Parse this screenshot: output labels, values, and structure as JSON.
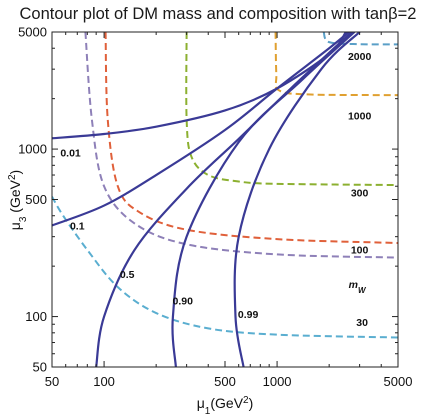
{
  "chart_data": {
    "type": "line",
    "title": "Contour plot of DM mass and composition with tanβ=2",
    "xlabel": {
      "base": "μ",
      "sub": "1",
      "paren": "(GeV",
      "sup": "2",
      "close": ")"
    },
    "ylabel": {
      "base": "μ",
      "sub": "3",
      "paren": " (GeV",
      "sup": "2",
      "close": ")"
    },
    "x_scale": "log",
    "y_scale": "log",
    "xlim": [
      50,
      5000
    ],
    "ylim": [
      50,
      5000
    ],
    "x_ticks": [
      {
        "value": 50,
        "label": "50"
      },
      {
        "value": 100,
        "label": "100"
      },
      {
        "value": 500,
        "label": "500"
      },
      {
        "value": 1000,
        "label": "1000"
      },
      {
        "value": 5000,
        "label": "5000"
      }
    ],
    "y_ticks": [
      {
        "value": 50,
        "label": "50"
      },
      {
        "value": 100,
        "label": "100"
      },
      {
        "value": 500,
        "label": "500"
      },
      {
        "value": 1000,
        "label": "1000"
      },
      {
        "value": 5000,
        "label": "5000"
      }
    ],
    "minor_ticks": [
      60,
      70,
      80,
      90,
      200,
      300,
      400,
      600,
      700,
      800,
      900,
      2000,
      3000,
      4000
    ],
    "grid": false,
    "mass_contours": [
      {
        "label": "2000",
        "color": "#5a9fc7",
        "points": [
          [
            1860,
            5000
          ],
          [
            2000,
            4350
          ],
          [
            3000,
            4230
          ],
          [
            5000,
            4220
          ]
        ],
        "label_at": [
          3000,
          3400
        ]
      },
      {
        "label": "1000",
        "color": "#e0a030",
        "points": [
          [
            980,
            5000
          ],
          [
            990,
            2800
          ],
          [
            1020,
            2250
          ],
          [
            1500,
            2120
          ],
          [
            5000,
            2100
          ]
        ],
        "label_at": [
          3000,
          1500
        ]
      },
      {
        "label": "300",
        "color": "#8cb030",
        "points": [
          [
            300,
            5000
          ],
          [
            300,
            1500
          ],
          [
            320,
            900
          ],
          [
            400,
            700
          ],
          [
            600,
            640
          ],
          [
            1000,
            620
          ],
          [
            5000,
            610
          ]
        ],
        "label_at": [
          3000,
          520
        ]
      },
      {
        "label": "100",
        "color": "#e0603a",
        "points": [
          [
            102,
            5000
          ],
          [
            105,
            1500
          ],
          [
            120,
            600
          ],
          [
            160,
            420
          ],
          [
            300,
            330
          ],
          [
            1000,
            290
          ],
          [
            5000,
            275
          ]
        ],
        "label_at": [
          3000,
          238
        ]
      },
      {
        "label": "mW",
        "label_base": "m",
        "label_sub": "W",
        "color": "#8e80b8",
        "points": [
          [
            78,
            5000
          ],
          [
            85,
            1500
          ],
          [
            100,
            600
          ],
          [
            150,
            360
          ],
          [
            300,
            270
          ],
          [
            1000,
            235
          ],
          [
            5000,
            225
          ]
        ],
        "label_at": [
          2900,
          148
        ]
      },
      {
        "label": "30",
        "color": "#5aaed0",
        "points": [
          [
            50,
            520
          ],
          [
            58,
            400
          ],
          [
            80,
            250
          ],
          [
            120,
            150
          ],
          [
            200,
            105
          ],
          [
            400,
            85
          ],
          [
            1000,
            78
          ],
          [
            5000,
            75
          ]
        ],
        "label_at": [
          3100,
          88
        ]
      }
    ],
    "composition_contours": [
      {
        "label": "0.01",
        "color": "#3a3a96",
        "points": [
          [
            50,
            1160
          ],
          [
            100,
            1230
          ],
          [
            200,
            1360
          ],
          [
            500,
            1700
          ],
          [
            1000,
            2300
          ],
          [
            2000,
            3700
          ],
          [
            2500,
            5000
          ]
        ],
        "label_at": [
          64,
          900
        ]
      },
      {
        "label": "0.1",
        "color": "#3a3a96",
        "points": [
          [
            50,
            350
          ],
          [
            100,
            460
          ],
          [
            200,
            700
          ],
          [
            500,
            1300
          ],
          [
            1000,
            2300
          ],
          [
            2000,
            4000
          ],
          [
            2600,
            5000
          ]
        ],
        "label_at": [
          70,
          330
        ]
      },
      {
        "label": "0.5",
        "color": "#3a3a96",
        "points": [
          [
            90,
            50
          ],
          [
            100,
            100
          ],
          [
            150,
            250
          ],
          [
            300,
            580
          ],
          [
            600,
            1150
          ],
          [
            1200,
            2300
          ],
          [
            2700,
            5000
          ]
        ],
        "label_at": [
          136,
          170
        ]
      },
      {
        "label": "0.90",
        "color": "#3a3a96",
        "points": [
          [
            260,
            50
          ],
          [
            250,
            100
          ],
          [
            300,
            300
          ],
          [
            600,
            1100
          ],
          [
            1400,
            2600
          ],
          [
            2800,
            5000
          ]
        ],
        "label_at": [
          285,
          118
        ]
      },
      {
        "label": "0.99",
        "color": "#3a3a96",
        "points": [
          [
            640,
            50
          ],
          [
            575,
            100
          ],
          [
            600,
            300
          ],
          [
            900,
            1000
          ],
          [
            1800,
            3000
          ],
          [
            3000,
            5000
          ]
        ],
        "label_at": [
          680,
          98
        ]
      }
    ]
  }
}
